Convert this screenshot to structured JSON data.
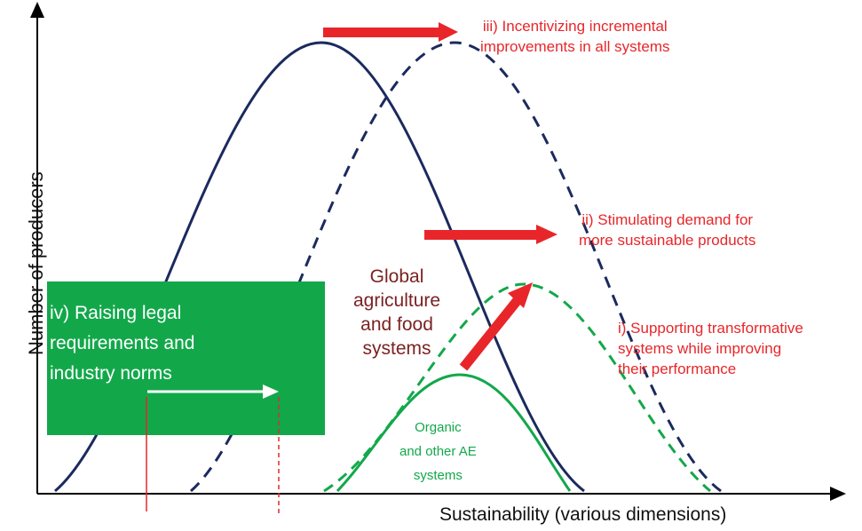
{
  "axes": {
    "x_label": "Sustainability (various dimensions)",
    "y_label": "Number of producers"
  },
  "annotations": {
    "iii": [
      "iii) Incentivizing incremental",
      "improvements in all systems"
    ],
    "ii": [
      "ii) Stimulating demand for",
      "more sustainable products"
    ],
    "i": [
      "i) Supporting transformative",
      "systems while improving",
      "their performance"
    ],
    "iv": "iv) Raising legal requirements and industry norms"
  },
  "curves": {
    "global": [
      "Global",
      "agriculture",
      "and food",
      "systems"
    ],
    "organic": [
      "Organic",
      "and other AE",
      "systems"
    ]
  },
  "colors": {
    "navy": "#1b2a5e",
    "green": "#12a84a",
    "red": "#e8262a",
    "maroon": "#7b2222"
  }
}
